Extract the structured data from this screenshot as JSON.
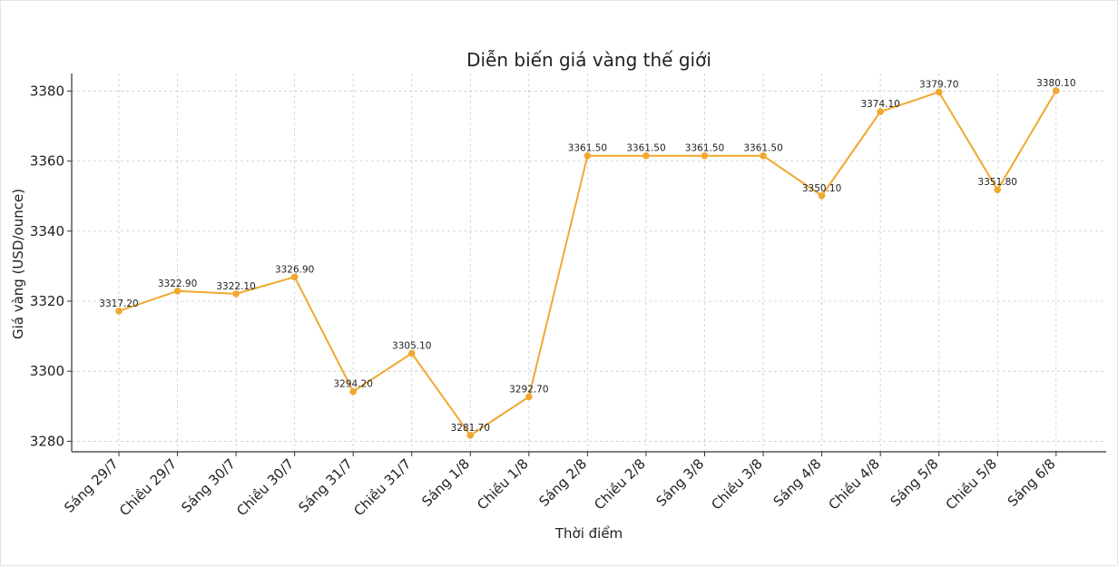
{
  "chart_data": {
    "type": "line",
    "title": "Diễn biến giá vàng thế giới",
    "xlabel": "Thời điểm",
    "ylabel": "Giá vàng (USD/ounce)",
    "categories": [
      "Sáng 29/7",
      "Chiều 29/7",
      "Sáng 30/7",
      "Chiều 30/7",
      "Sáng 31/7",
      "Chiều 31/7",
      "Sáng 1/8",
      "Chiều 1/8",
      "Sáng 2/8",
      "Chiều 2/8",
      "Sáng 3/8",
      "Chiều 3/8",
      "Sáng 4/8",
      "Chiều 4/8",
      "Sáng 5/8",
      "Chiều 5/8",
      "Sáng 6/8"
    ],
    "values": [
      3317.2,
      3322.9,
      3322.1,
      3326.9,
      3294.2,
      3305.1,
      3281.7,
      3292.7,
      3361.5,
      3361.5,
      3361.5,
      3361.5,
      3350.1,
      3374.1,
      3379.7,
      3351.8,
      3380.1
    ],
    "labels": [
      "3317.20",
      "3322.90",
      "3322.10",
      "3326.90",
      "3294.20",
      "3305.10",
      "3281.70",
      "3292.70",
      "3361.50",
      "3361.50",
      "3361.50",
      "3361.50",
      "3350.10",
      "3374.10",
      "3379.70",
      "3351.80",
      "3380.10"
    ],
    "yticks": [
      3280,
      3300,
      3320,
      3340,
      3360,
      3380
    ],
    "ylim": [
      3277,
      3385
    ],
    "grid": true,
    "line_color": "#f0a830",
    "point_color": "#f0a830",
    "grid_color": "#cccccc",
    "axis_color": "#333333"
  }
}
